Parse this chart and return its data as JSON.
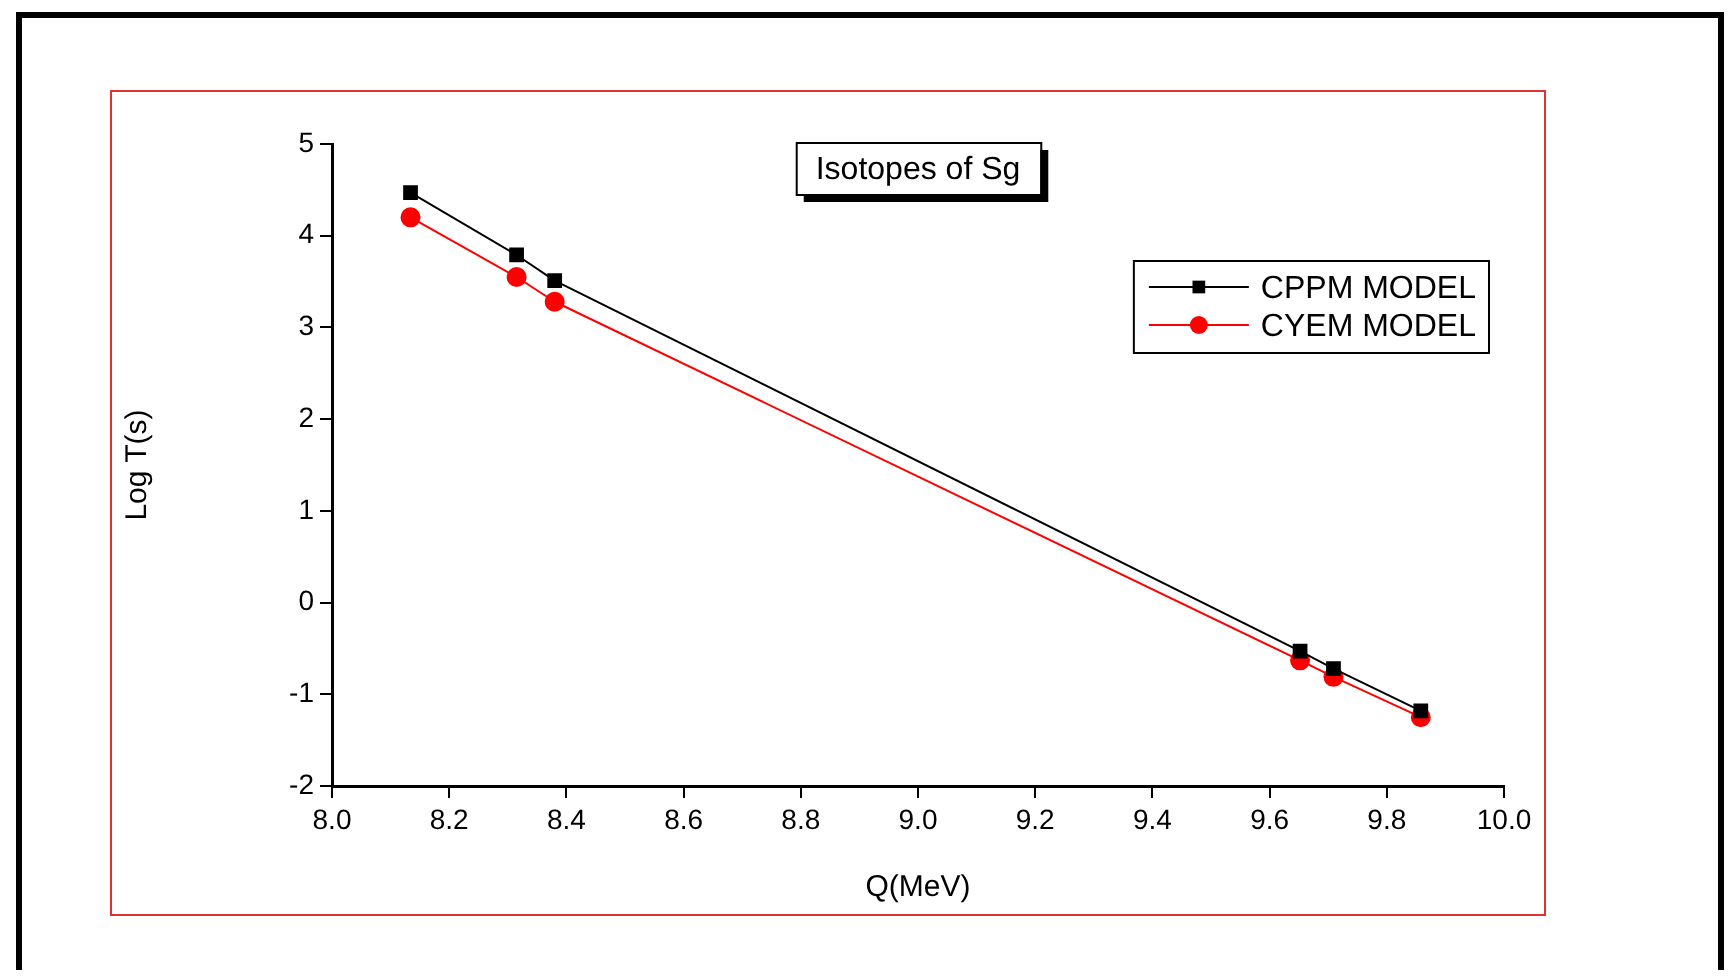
{
  "chart_data": {
    "type": "line",
    "title": "Isotopes of Sg",
    "xlabel": "Q(MeV)",
    "ylabel": "Log T(s)",
    "xlim": [
      8.0,
      10.0
    ],
    "xticks": [
      {
        "value": 8,
        "label": "8.0"
      },
      8.2,
      8.4,
      8.6,
      8.8,
      {
        "value": 9,
        "label": "9.0"
      },
      9.2,
      9.4,
      9.6,
      9.8,
      {
        "value": 10,
        "label": "10.0"
      }
    ],
    "ylim": [
      -2,
      5
    ],
    "yticks": [
      -2,
      -1,
      0,
      1,
      2,
      3,
      4,
      5
    ],
    "grid": false,
    "legend": "top right",
    "line_style": "solid",
    "x": [
      8.134,
      8.315,
      8.38,
      9.652,
      9.709,
      9.858
    ],
    "series": [
      {
        "name": "CPPM MODEL",
        "color": "#000000",
        "marker": "square",
        "values": [
          4.47,
          3.79,
          3.51,
          -0.53,
          -0.72,
          -1.18
        ]
      },
      {
        "name": "CYEM MODEL",
        "color": "#ff0000",
        "marker": "circle",
        "values": [
          4.2,
          3.55,
          3.28,
          -0.63,
          -0.81,
          -1.25
        ]
      }
    ]
  }
}
